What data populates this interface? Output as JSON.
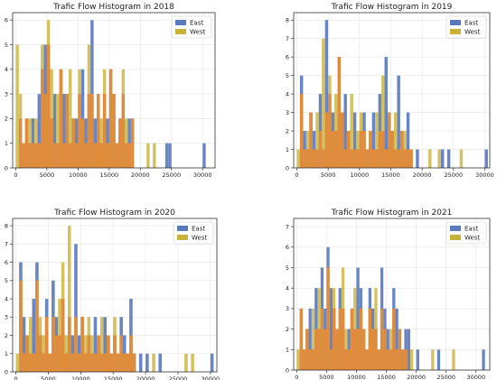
{
  "colors": {
    "east": "#5a78bc",
    "west": "#c9b23a",
    "overlap": "#e8873a",
    "grid": "#e6e6e6"
  },
  "chart_data": [
    {
      "type": "bar",
      "title": "Trafic Flow Histogram in 2018",
      "xlim": [
        -500,
        32000
      ],
      "ylim": [
        0,
        6.3
      ],
      "xticks": [
        0,
        5000,
        10000,
        15000,
        20000,
        25000,
        30000
      ],
      "yticks": [
        0,
        1,
        2,
        3,
        4,
        5,
        6
      ],
      "grid": true,
      "legend_position": "top-right",
      "bin_width": 500,
      "series": [
        {
          "name": "East",
          "x": [
            500,
            1000,
            1500,
            2000,
            2500,
            3000,
            3500,
            4000,
            4500,
            5000,
            5500,
            6000,
            6500,
            7000,
            7500,
            8000,
            8500,
            9000,
            9500,
            10000,
            10500,
            11000,
            11500,
            12000,
            12500,
            13000,
            13500,
            14000,
            14500,
            15000,
            15500,
            16000,
            16500,
            17000,
            17500,
            18000,
            18500,
            24000,
            24500,
            30000
          ],
          "values": [
            2,
            1,
            2,
            1,
            2,
            1,
            3,
            4,
            5,
            5,
            2,
            3,
            1,
            4,
            3,
            3,
            1,
            2,
            2,
            3,
            4,
            2,
            3,
            6,
            2,
            3,
            1,
            3,
            2,
            4,
            3,
            1,
            2,
            3,
            1,
            2,
            2,
            1,
            1,
            1
          ]
        },
        {
          "name": "West",
          "x": [
            0,
            500,
            1000,
            1500,
            2000,
            2500,
            3000,
            3500,
            4000,
            4500,
            5000,
            5500,
            6000,
            6500,
            7000,
            7500,
            8000,
            8500,
            9000,
            9500,
            10000,
            10500,
            11000,
            11500,
            12000,
            12500,
            13000,
            13500,
            14000,
            14500,
            15000,
            15500,
            16000,
            16500,
            17000,
            17500,
            18000,
            18500,
            21000,
            22000
          ],
          "values": [
            5,
            3,
            1,
            2,
            2,
            1,
            2,
            1,
            5,
            3,
            6,
            4,
            1,
            3,
            4,
            1,
            3,
            4,
            2,
            1,
            4,
            2,
            1,
            5,
            3,
            1,
            3,
            2,
            4,
            1,
            4,
            3,
            1,
            2,
            4,
            2,
            1,
            2,
            1,
            1
          ]
        }
      ]
    },
    {
      "type": "bar",
      "title": "Trafic Flow Histogram in 2019",
      "xlim": [
        -500,
        30800
      ],
      "ylim": [
        0,
        8.4
      ],
      "xticks": [
        0,
        5000,
        10000,
        15000,
        20000,
        25000,
        30000
      ],
      "yticks": [
        0,
        1,
        2,
        3,
        4,
        5,
        6,
        7,
        8
      ],
      "grid": true,
      "legend_position": "top-right",
      "bin_width": 500,
      "series": [
        {
          "name": "East",
          "x": [
            500,
            1000,
            1500,
            2000,
            2500,
            3000,
            3500,
            4000,
            4500,
            5000,
            5500,
            6000,
            6500,
            7000,
            7500,
            8000,
            8500,
            9000,
            9500,
            10000,
            10500,
            11000,
            11500,
            12000,
            12500,
            13000,
            13500,
            14000,
            14500,
            15000,
            15500,
            16000,
            16500,
            17000,
            17500,
            18000,
            19000,
            23000,
            24000,
            30000
          ],
          "values": [
            5,
            2,
            1,
            3,
            2,
            1,
            4,
            1,
            8,
            4,
            3,
            2,
            6,
            3,
            4,
            2,
            1,
            3,
            1,
            2,
            3,
            1,
            2,
            3,
            1,
            4,
            2,
            6,
            3,
            2,
            1,
            5,
            2,
            1,
            3,
            1,
            1,
            1,
            1,
            1
          ]
        },
        {
          "name": "West",
          "x": [
            0,
            500,
            1000,
            1500,
            2000,
            2500,
            3000,
            3500,
            4000,
            4500,
            5000,
            5500,
            6000,
            6500,
            7000,
            7500,
            8000,
            8500,
            9000,
            9500,
            10000,
            10500,
            11000,
            11500,
            12000,
            12500,
            13000,
            13500,
            14000,
            14500,
            15000,
            15500,
            16000,
            16500,
            17000,
            17500,
            18000,
            21000,
            22500,
            26000
          ],
          "values": [
            1,
            4,
            1,
            2,
            3,
            1,
            3,
            2,
            7,
            3,
            5,
            2,
            4,
            6,
            3,
            1,
            2,
            4,
            1,
            2,
            3,
            2,
            1,
            2,
            1,
            3,
            2,
            5,
            1,
            3,
            2,
            3,
            1,
            2,
            2,
            1,
            1,
            1,
            1,
            1
          ]
        }
      ]
    },
    {
      "type": "bar",
      "title": "Trafic Flow Histogram in 2020",
      "xlim": [
        -500,
        31000
      ],
      "ylim": [
        0,
        8.4
      ],
      "xticks": [
        0,
        5000,
        10000,
        15000,
        20000,
        25000,
        30000
      ],
      "yticks": [
        0,
        1,
        2,
        3,
        4,
        5,
        6,
        7,
        8
      ],
      "grid": true,
      "legend_position": "top-right",
      "bin_width": 500,
      "series": [
        {
          "name": "East",
          "x": [
            500,
            1000,
            1500,
            2000,
            2500,
            3000,
            3500,
            4000,
            4500,
            5000,
            5500,
            6000,
            6500,
            7000,
            7500,
            8000,
            8500,
            9000,
            9500,
            10000,
            10500,
            11000,
            11500,
            12000,
            12500,
            13000,
            13500,
            14000,
            14500,
            15000,
            15500,
            16000,
            16500,
            17000,
            17500,
            18000,
            19000,
            20000,
            22000,
            30000
          ],
          "values": [
            6,
            3,
            2,
            1,
            4,
            6,
            2,
            1,
            4,
            1,
            5,
            3,
            2,
            4,
            1,
            3,
            2,
            7,
            2,
            3,
            1,
            2,
            1,
            3,
            2,
            1,
            3,
            2,
            1,
            2,
            1,
            3,
            2,
            1,
            4,
            1,
            1,
            1,
            1,
            1
          ]
        },
        {
          "name": "West",
          "x": [
            0,
            500,
            1000,
            1500,
            2000,
            2500,
            3000,
            3500,
            4000,
            4500,
            5000,
            5500,
            6000,
            6500,
            7000,
            7500,
            8000,
            8500,
            9000,
            9500,
            10000,
            10500,
            11000,
            11500,
            12000,
            12500,
            13000,
            13500,
            14000,
            14500,
            15000,
            15500,
            16000,
            16500,
            17000,
            17500,
            18000,
            21000,
            26000,
            27000
          ],
          "values": [
            1,
            5,
            1,
            2,
            3,
            1,
            5,
            3,
            2,
            3,
            1,
            3,
            2,
            4,
            6,
            2,
            8,
            1,
            3,
            1,
            3,
            2,
            3,
            2,
            1,
            2,
            3,
            1,
            2,
            1,
            3,
            1,
            2,
            1,
            1,
            2,
            1,
            1,
            1,
            1
          ]
        }
      ]
    },
    {
      "type": "bar",
      "title": "Trafic Flow Histogram in 2021",
      "xlim": [
        -500,
        32300
      ],
      "ylim": [
        0,
        7.4
      ],
      "xticks": [
        0,
        5000,
        10000,
        15000,
        20000,
        25000,
        30000
      ],
      "yticks": [
        0,
        1,
        2,
        3,
        4,
        5,
        6,
        7
      ],
      "grid": true,
      "legend_position": "top-right",
      "bin_width": 500,
      "series": [
        {
          "name": "East",
          "x": [
            500,
            1000,
            1500,
            2000,
            2500,
            3000,
            3500,
            4000,
            4500,
            5000,
            5500,
            6000,
            6500,
            7000,
            7500,
            8000,
            8500,
            9000,
            9500,
            10000,
            10500,
            11000,
            11500,
            12000,
            12500,
            13000,
            13500,
            14000,
            14500,
            15000,
            15500,
            16000,
            16500,
            17000,
            17500,
            18000,
            18500,
            20000,
            23500,
            31000
          ],
          "values": [
            3,
            1,
            2,
            3,
            1,
            4,
            2,
            5,
            3,
            6,
            4,
            3,
            2,
            4,
            3,
            1,
            2,
            3,
            2,
            5,
            4,
            2,
            1,
            4,
            3,
            2,
            1,
            5,
            3,
            2,
            1,
            4,
            3,
            2,
            1,
            2,
            2,
            1,
            1,
            1
          ]
        },
        {
          "name": "West",
          "x": [
            0,
            500,
            1000,
            1500,
            2000,
            2500,
            3000,
            3500,
            4000,
            4500,
            5000,
            5500,
            6000,
            6500,
            7000,
            7500,
            8000,
            8500,
            9000,
            9500,
            10000,
            10500,
            11000,
            11500,
            12000,
            12500,
            13000,
            13500,
            14000,
            14500,
            15000,
            15500,
            16000,
            16500,
            17000,
            17500,
            18000,
            19000,
            22500,
            26000
          ],
          "values": [
            1,
            3,
            1,
            2,
            1,
            3,
            2,
            4,
            3,
            2,
            5,
            1,
            4,
            2,
            3,
            5,
            2,
            1,
            3,
            4,
            2,
            3,
            2,
            1,
            3,
            2,
            4,
            1,
            3,
            2,
            1,
            2,
            3,
            1,
            2,
            1,
            1,
            1,
            1,
            1
          ]
        }
      ]
    }
  ]
}
